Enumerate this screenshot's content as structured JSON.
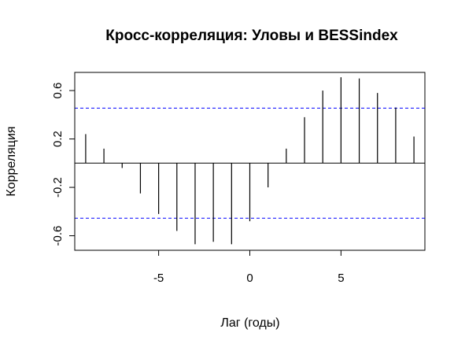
{
  "chart_data": {
    "type": "bar",
    "title": "Кросс-корреляция: Уловы и BESSindex",
    "xlabel": "Лаг (годы)",
    "ylabel": "Корреляция",
    "x": [
      -9,
      -8,
      -7,
      -6,
      -5,
      -4,
      -3,
      -2,
      -1,
      0,
      1,
      2,
      3,
      4,
      5,
      6,
      7,
      8,
      9
    ],
    "values": [
      0.24,
      0.12,
      -0.04,
      -0.25,
      -0.42,
      -0.56,
      -0.67,
      -0.65,
      -0.67,
      -0.48,
      -0.2,
      0.12,
      0.38,
      0.6,
      0.71,
      0.7,
      0.58,
      0.46,
      0.22
    ],
    "xlim": [
      -9.6,
      9.6
    ],
    "ylim": [
      -0.72,
      0.75
    ],
    "xticks": [
      -5,
      0,
      5
    ],
    "yticks": [
      -0.6,
      -0.2,
      0.2,
      0.6
    ],
    "xtick_labels": [
      "-5",
      "0",
      "5"
    ],
    "ytick_labels": [
      "-0.6",
      "-0.2",
      "0.2",
      "0.6"
    ],
    "confidence_limits": [
      0.455,
      -0.455
    ],
    "grid": false,
    "colors": {
      "bars": "#000000",
      "confidence_line": "#0000ff",
      "axis": "#000000"
    }
  }
}
